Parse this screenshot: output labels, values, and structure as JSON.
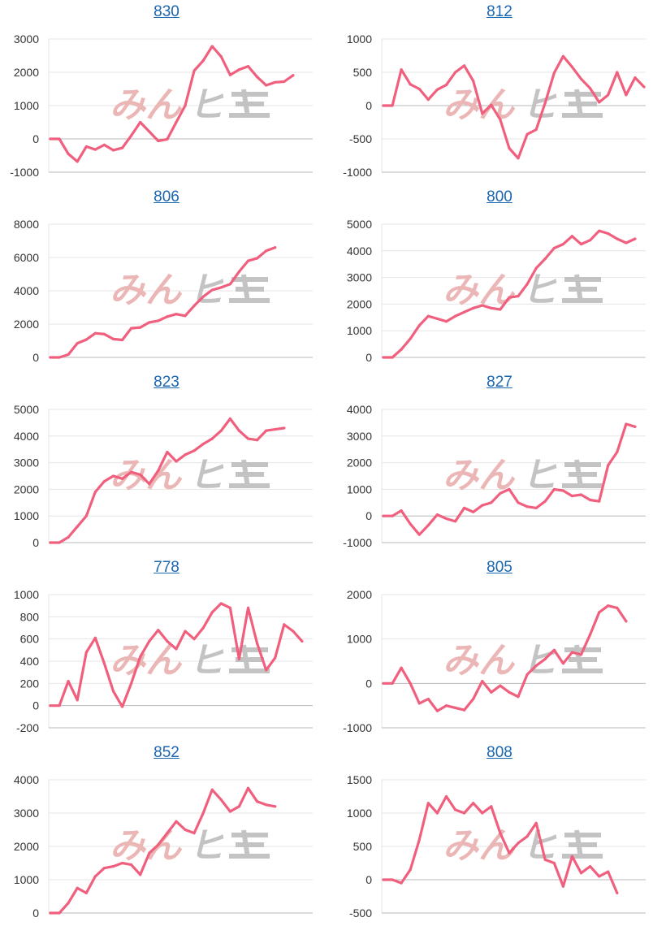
{
  "line_color": "#f0607e",
  "watermark": {
    "text_left": "みん",
    "text_right": "ヒ",
    "color_left": "#eab3b3",
    "color_right": "#c0c0c0"
  },
  "chart_data": [
    {
      "type": "line",
      "title": "830",
      "ylim": [
        -1000,
        3000
      ],
      "yticks": [
        -1000,
        0,
        1000,
        2000,
        3000
      ],
      "values": [
        0,
        0,
        -450,
        -680,
        -230,
        -320,
        -180,
        -340,
        -270,
        100,
        500,
        220,
        -60,
        -10,
        500,
        1000,
        2050,
        2350,
        2780,
        2470,
        1920,
        2080,
        2180,
        1860,
        1610,
        1700,
        1720,
        1910
      ]
    },
    {
      "type": "line",
      "title": "812",
      "ylim": [
        -1000,
        1000
      ],
      "yticks": [
        -1000,
        -500,
        0,
        500,
        1000
      ],
      "values": [
        0,
        0,
        540,
        320,
        250,
        90,
        240,
        310,
        500,
        600,
        370,
        -120,
        10,
        -210,
        -640,
        -790,
        -430,
        -360,
        40,
        490,
        740,
        580,
        400,
        260,
        50,
        160,
        500,
        160,
        420,
        280
      ]
    },
    {
      "type": "line",
      "title": "806",
      "ylim": [
        0,
        8000
      ],
      "yticks": [
        0,
        2000,
        4000,
        6000,
        8000
      ],
      "values": [
        0,
        0,
        170,
        850,
        1070,
        1450,
        1400,
        1100,
        1050,
        1750,
        1800,
        2100,
        2200,
        2450,
        2600,
        2500,
        3100,
        3650,
        4050,
        4200,
        4400,
        5150,
        5800,
        5950,
        6400,
        6600
      ]
    },
    {
      "type": "line",
      "title": "800",
      "ylim": [
        0,
        5000
      ],
      "yticks": [
        0,
        1000,
        2000,
        3000,
        4000,
        5000
      ],
      "values": [
        0,
        0,
        300,
        700,
        1200,
        1550,
        1450,
        1350,
        1550,
        1700,
        1850,
        1950,
        1850,
        1800,
        2250,
        2300,
        2750,
        3350,
        3700,
        4100,
        4250,
        4550,
        4250,
        4400,
        4750,
        4650,
        4450,
        4300,
        4450
      ]
    },
    {
      "type": "line",
      "title": "823",
      "ylim": [
        0,
        5000
      ],
      "yticks": [
        0,
        1000,
        2000,
        3000,
        4000,
        5000
      ],
      "values": [
        0,
        0,
        200,
        600,
        1000,
        1900,
        2300,
        2500,
        2400,
        2650,
        2550,
        2200,
        2700,
        3400,
        3050,
        3300,
        3450,
        3700,
        3900,
        4200,
        4650,
        4200,
        3900,
        3850,
        4200,
        4250,
        4300
      ]
    },
    {
      "type": "line",
      "title": "827",
      "ylim": [
        -1000,
        4000
      ],
      "yticks": [
        -1000,
        0,
        1000,
        2000,
        3000,
        4000
      ],
      "values": [
        0,
        0,
        200,
        -300,
        -700,
        -350,
        50,
        -100,
        -200,
        300,
        150,
        400,
        500,
        850,
        1000,
        500,
        350,
        300,
        550,
        1000,
        950,
        750,
        800,
        600,
        550,
        1900,
        2400,
        3450,
        3350
      ]
    },
    {
      "type": "line",
      "title": "778",
      "ylim": [
        -200,
        1000
      ],
      "yticks": [
        -200,
        0,
        200,
        400,
        600,
        800,
        1000
      ],
      "values": [
        0,
        0,
        220,
        50,
        480,
        610,
        380,
        130,
        -10,
        200,
        440,
        580,
        680,
        580,
        510,
        670,
        600,
        700,
        840,
        920,
        880,
        420,
        880,
        560,
        320,
        430,
        730,
        670,
        580
      ]
    },
    {
      "type": "line",
      "title": "805",
      "ylim": [
        -1000,
        2000
      ],
      "yticks": [
        -1000,
        0,
        1000,
        2000
      ],
      "values": [
        0,
        0,
        350,
        0,
        -450,
        -350,
        -620,
        -500,
        -550,
        -600,
        -350,
        50,
        -200,
        -50,
        -200,
        -300,
        200,
        400,
        550,
        750,
        450,
        700,
        650,
        1100,
        1600,
        1750,
        1700,
        1400
      ]
    },
    {
      "type": "line",
      "title": "852",
      "ylim": [
        0,
        4000
      ],
      "yticks": [
        0,
        1000,
        2000,
        3000,
        4000
      ],
      "values": [
        0,
        0,
        300,
        750,
        600,
        1100,
        1350,
        1400,
        1500,
        1450,
        1150,
        1800,
        2050,
        2400,
        2750,
        2500,
        2400,
        3000,
        3700,
        3400,
        3050,
        3200,
        3750,
        3350,
        3250,
        3200
      ]
    },
    {
      "type": "line",
      "title": "808",
      "ylim": [
        -500,
        1500
      ],
      "yticks": [
        -500,
        0,
        500,
        1000,
        1500
      ],
      "values": [
        0,
        0,
        -50,
        150,
        600,
        1150,
        1000,
        1250,
        1050,
        1000,
        1150,
        1000,
        1100,
        700,
        400,
        550,
        650,
        850,
        300,
        250,
        -100,
        350,
        100,
        200,
        50,
        120,
        -200
      ]
    }
  ]
}
